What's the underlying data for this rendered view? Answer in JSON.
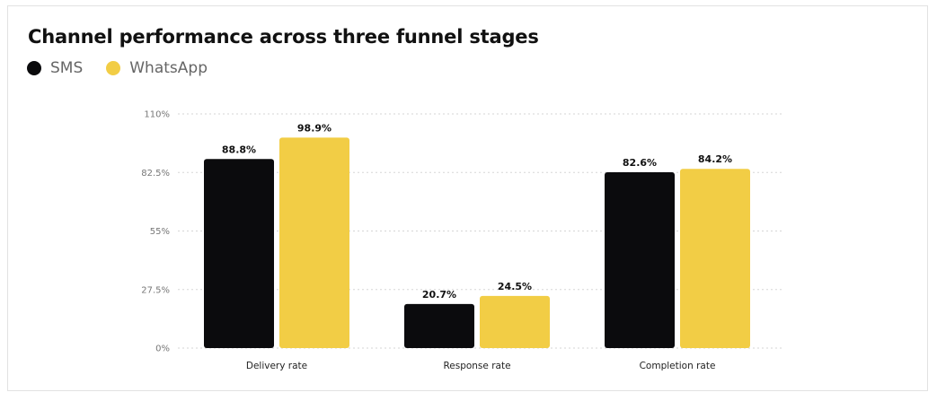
{
  "chart_data": {
    "type": "bar",
    "title": "Channel performance across three funnel stages",
    "categories": [
      "Delivery rate",
      "Response rate",
      "Completion rate"
    ],
    "series": [
      {
        "name": "SMS",
        "color": "#0b0b0d",
        "values": [
          88.8,
          20.7,
          82.6
        ],
        "labels": [
          "88.8%",
          "20.7%",
          "82.6%"
        ]
      },
      {
        "name": "WhatsApp",
        "color": "#f2cd45",
        "values": [
          98.9,
          24.5,
          84.2
        ],
        "labels": [
          "98.9%",
          "24.5%",
          "84.2%"
        ]
      }
    ],
    "y_ticks": [
      0,
      27.5,
      55,
      82.5,
      110
    ],
    "y_tick_labels": [
      "0%",
      "27.5%",
      "55%",
      "82.5%",
      "110%"
    ],
    "ylim": [
      0,
      110
    ],
    "grid": true,
    "legend_position": "top-left"
  }
}
